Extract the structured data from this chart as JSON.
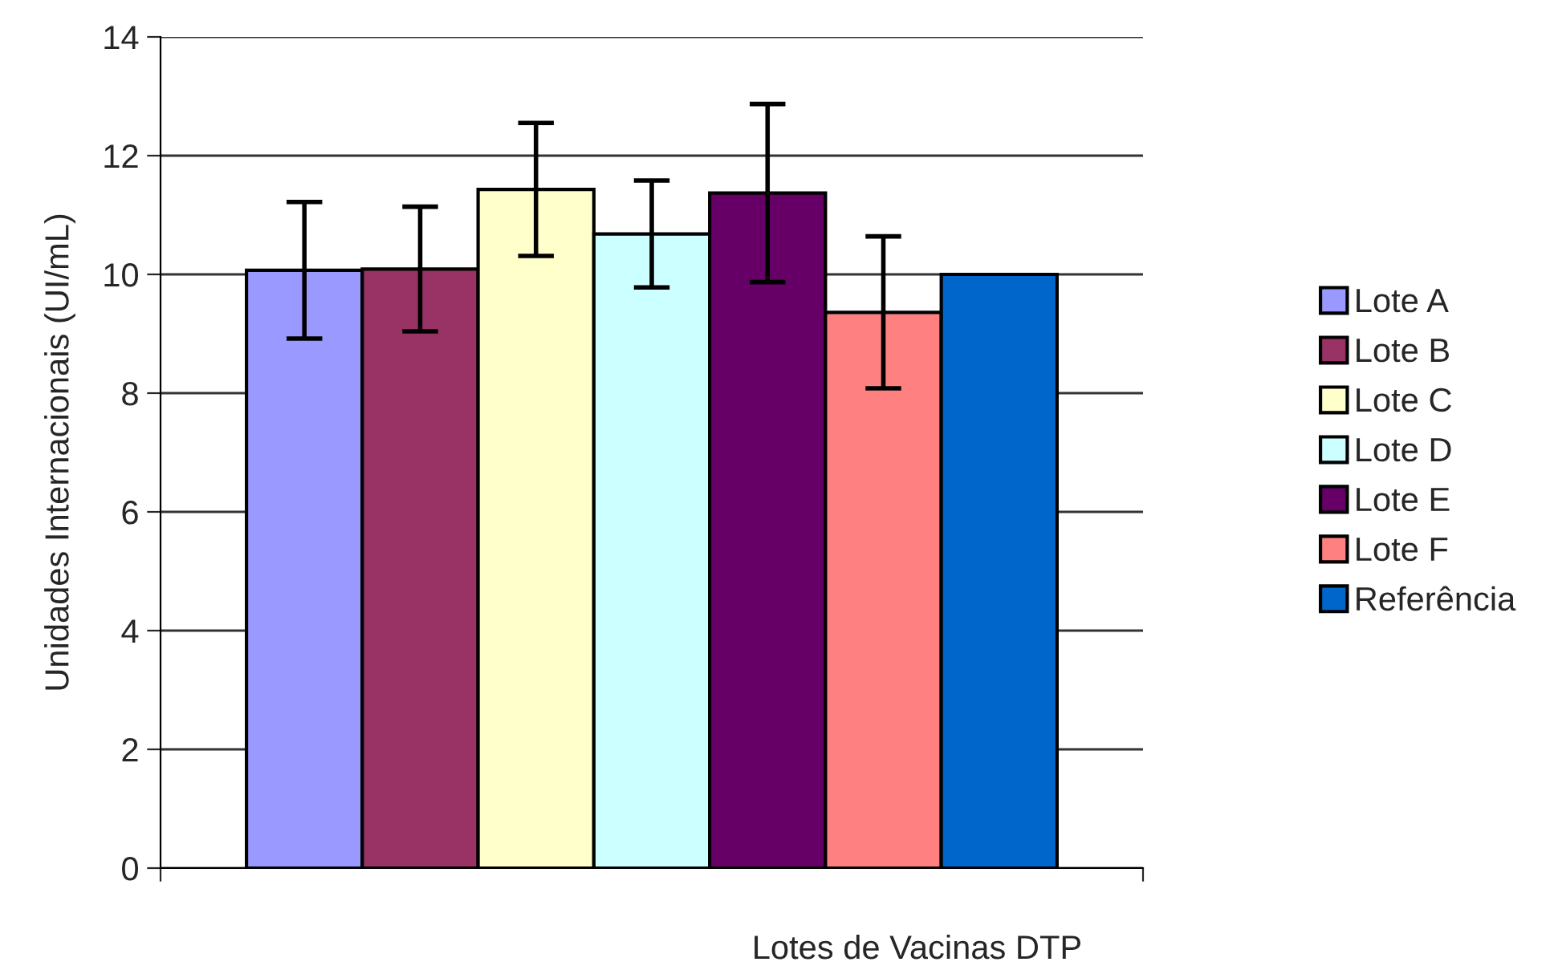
{
  "chart_data": {
    "type": "bar",
    "xlabel": "Lotes de Vacinas DTP",
    "ylabel": "Unidades Internacionais (UI/mL)",
    "categories": [
      null
    ],
    "series": [
      {
        "name": "Lote A",
        "color": "#9999ff",
        "values": [
          10.07
        ],
        "errors": [
          1.15
        ]
      },
      {
        "name": "Lote B",
        "color": "#993366",
        "values": [
          10.09
        ],
        "errors": [
          1.05
        ]
      },
      {
        "name": "Lote C",
        "color": "#ffffcc",
        "values": [
          11.43
        ],
        "errors": [
          1.12
        ]
      },
      {
        "name": "Lote D",
        "color": "#ccffff",
        "values": [
          10.68
        ],
        "errors": [
          0.9
        ]
      },
      {
        "name": "Lote E",
        "color": "#660066",
        "values": [
          11.37
        ],
        "errors": [
          1.5
        ]
      },
      {
        "name": "Lote F",
        "color": "#ff8080",
        "values": [
          9.36
        ],
        "errors": [
          1.28
        ]
      },
      {
        "name": "Referência",
        "color": "#0066cc",
        "values": [
          10.0
        ]
      }
    ],
    "ylim": [
      0,
      14
    ],
    "yticks": [
      0,
      2,
      4,
      6,
      8,
      10,
      12,
      14
    ],
    "grid": "y",
    "legend": "right"
  }
}
